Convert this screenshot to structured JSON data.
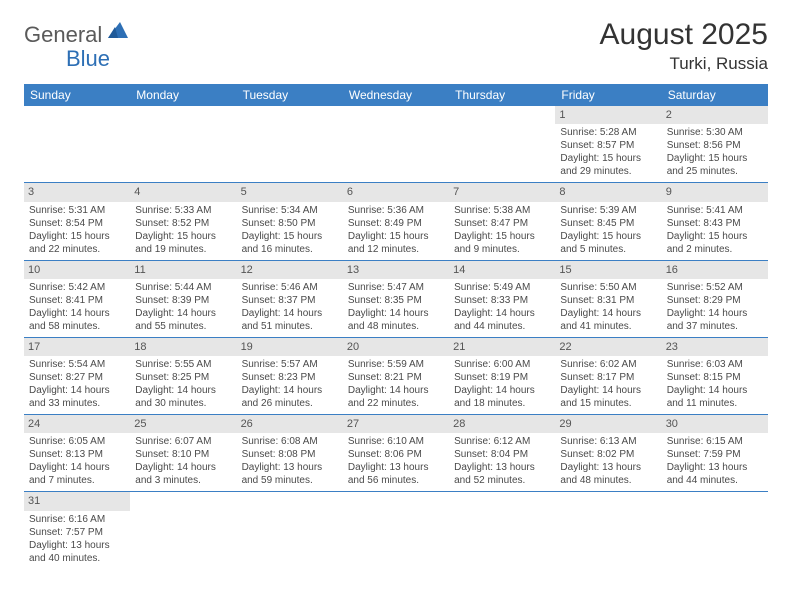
{
  "brand": {
    "part1": "General",
    "part2": "Blue"
  },
  "title": "August 2025",
  "location": "Turki, Russia",
  "colors": {
    "header_bg": "#3b7fc4",
    "header_fg": "#ffffff",
    "daynum_bg": "#e6e6e6",
    "row_border": "#3b7fc4",
    "logo_accent": "#2d6fb5",
    "logo_gray": "#5a5a5a"
  },
  "weekdays": [
    "Sunday",
    "Monday",
    "Tuesday",
    "Wednesday",
    "Thursday",
    "Friday",
    "Saturday"
  ],
  "weeks": [
    [
      null,
      null,
      null,
      null,
      null,
      {
        "n": "1",
        "sunrise": "5:28 AM",
        "sunset": "8:57 PM",
        "dh": "15",
        "dm": "29"
      },
      {
        "n": "2",
        "sunrise": "5:30 AM",
        "sunset": "8:56 PM",
        "dh": "15",
        "dm": "25"
      }
    ],
    [
      {
        "n": "3",
        "sunrise": "5:31 AM",
        "sunset": "8:54 PM",
        "dh": "15",
        "dm": "22"
      },
      {
        "n": "4",
        "sunrise": "5:33 AM",
        "sunset": "8:52 PM",
        "dh": "15",
        "dm": "19"
      },
      {
        "n": "5",
        "sunrise": "5:34 AM",
        "sunset": "8:50 PM",
        "dh": "15",
        "dm": "16"
      },
      {
        "n": "6",
        "sunrise": "5:36 AM",
        "sunset": "8:49 PM",
        "dh": "15",
        "dm": "12"
      },
      {
        "n": "7",
        "sunrise": "5:38 AM",
        "sunset": "8:47 PM",
        "dh": "15",
        "dm": "9"
      },
      {
        "n": "8",
        "sunrise": "5:39 AM",
        "sunset": "8:45 PM",
        "dh": "15",
        "dm": "5"
      },
      {
        "n": "9",
        "sunrise": "5:41 AM",
        "sunset": "8:43 PM",
        "dh": "15",
        "dm": "2"
      }
    ],
    [
      {
        "n": "10",
        "sunrise": "5:42 AM",
        "sunset": "8:41 PM",
        "dh": "14",
        "dm": "58"
      },
      {
        "n": "11",
        "sunrise": "5:44 AM",
        "sunset": "8:39 PM",
        "dh": "14",
        "dm": "55"
      },
      {
        "n": "12",
        "sunrise": "5:46 AM",
        "sunset": "8:37 PM",
        "dh": "14",
        "dm": "51"
      },
      {
        "n": "13",
        "sunrise": "5:47 AM",
        "sunset": "8:35 PM",
        "dh": "14",
        "dm": "48"
      },
      {
        "n": "14",
        "sunrise": "5:49 AM",
        "sunset": "8:33 PM",
        "dh": "14",
        "dm": "44"
      },
      {
        "n": "15",
        "sunrise": "5:50 AM",
        "sunset": "8:31 PM",
        "dh": "14",
        "dm": "41"
      },
      {
        "n": "16",
        "sunrise": "5:52 AM",
        "sunset": "8:29 PM",
        "dh": "14",
        "dm": "37"
      }
    ],
    [
      {
        "n": "17",
        "sunrise": "5:54 AM",
        "sunset": "8:27 PM",
        "dh": "14",
        "dm": "33"
      },
      {
        "n": "18",
        "sunrise": "5:55 AM",
        "sunset": "8:25 PM",
        "dh": "14",
        "dm": "30"
      },
      {
        "n": "19",
        "sunrise": "5:57 AM",
        "sunset": "8:23 PM",
        "dh": "14",
        "dm": "26"
      },
      {
        "n": "20",
        "sunrise": "5:59 AM",
        "sunset": "8:21 PM",
        "dh": "14",
        "dm": "22"
      },
      {
        "n": "21",
        "sunrise": "6:00 AM",
        "sunset": "8:19 PM",
        "dh": "14",
        "dm": "18"
      },
      {
        "n": "22",
        "sunrise": "6:02 AM",
        "sunset": "8:17 PM",
        "dh": "14",
        "dm": "15"
      },
      {
        "n": "23",
        "sunrise": "6:03 AM",
        "sunset": "8:15 PM",
        "dh": "14",
        "dm": "11"
      }
    ],
    [
      {
        "n": "24",
        "sunrise": "6:05 AM",
        "sunset": "8:13 PM",
        "dh": "14",
        "dm": "7"
      },
      {
        "n": "25",
        "sunrise": "6:07 AM",
        "sunset": "8:10 PM",
        "dh": "14",
        "dm": "3"
      },
      {
        "n": "26",
        "sunrise": "6:08 AM",
        "sunset": "8:08 PM",
        "dh": "13",
        "dm": "59"
      },
      {
        "n": "27",
        "sunrise": "6:10 AM",
        "sunset": "8:06 PM",
        "dh": "13",
        "dm": "56"
      },
      {
        "n": "28",
        "sunrise": "6:12 AM",
        "sunset": "8:04 PM",
        "dh": "13",
        "dm": "52"
      },
      {
        "n": "29",
        "sunrise": "6:13 AM",
        "sunset": "8:02 PM",
        "dh": "13",
        "dm": "48"
      },
      {
        "n": "30",
        "sunrise": "6:15 AM",
        "sunset": "7:59 PM",
        "dh": "13",
        "dm": "44"
      }
    ],
    [
      {
        "n": "31",
        "sunrise": "6:16 AM",
        "sunset": "7:57 PM",
        "dh": "13",
        "dm": "40"
      },
      null,
      null,
      null,
      null,
      null,
      null
    ]
  ],
  "labels": {
    "sunrise": "Sunrise:",
    "sunset": "Sunset:",
    "daylight": "Daylight:",
    "hours": "hours",
    "and": "and",
    "minutes": "minutes."
  }
}
